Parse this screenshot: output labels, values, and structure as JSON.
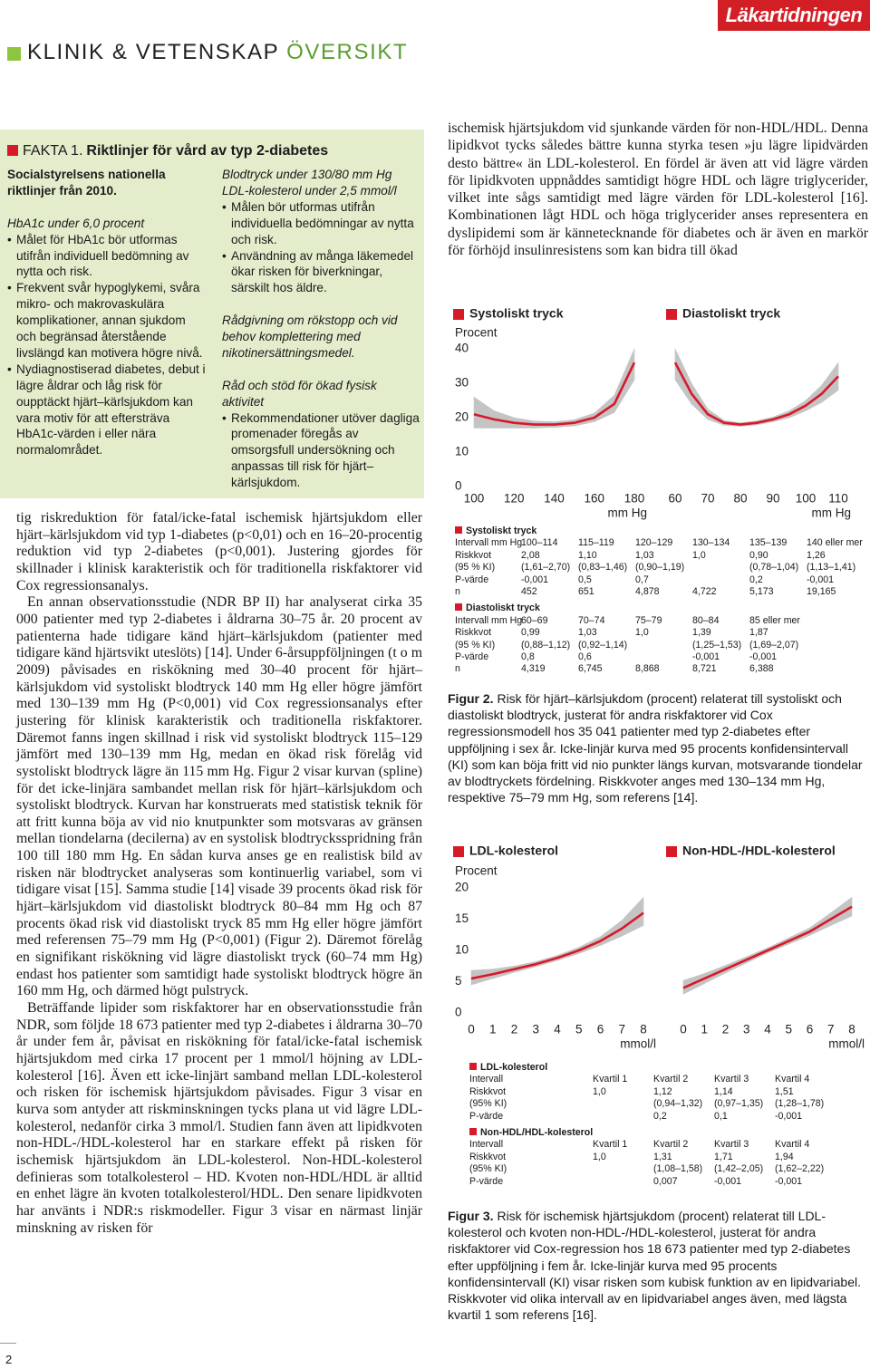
{
  "header": {
    "logo": "Läkartidningen",
    "section": "KLINIK & VETENSKAP",
    "section_highlight": "ÖVERSIKT"
  },
  "fact_box": {
    "label": "FAKTA 1.",
    "title": "Riktlinjer för vård av typ 2-diabetes",
    "left": {
      "intro": "Socialstyrelsens nationella riktlinjer från 2010.",
      "sections": [
        {
          "headings": [
            "HbA1c under 6,0 procent"
          ],
          "bullets": [
            "Målet för HbA1c bör utformas utifrån individuell bedömning av nytta och risk.",
            "Frekvent svår hypoglykemi, svåra mikro- och makrovaskulära komplikationer, annan sjukdom och begränsad återstående livslängd kan motivera högre nivå.",
            "Nydiagnostiserad diabetes, debut i lägre åldrar och låg risk för oupptäckt hjärt–kärlsjukdom kan vara motiv för att eftersträva HbA1c-värden i eller nära normalområdet."
          ]
        }
      ]
    },
    "right": {
      "sections": [
        {
          "headings": [
            "Blodtryck under 130/80 mm Hg",
            "LDL-kolesterol under 2,5 mmol/l"
          ],
          "bullets": [
            "Målen bör utformas utifrån individuella bedömningar av nytta och risk.",
            "Användning av många läkemedel ökar risken för biverkningar, särskilt hos äldre."
          ]
        },
        {
          "headings": [
            "Rådgivning om rökstopp och vid behov komplettering med nikotinersättningsmedel."
          ]
        },
        {
          "headings": [
            "Råd och stöd för ökad fysisk aktivitet"
          ],
          "bullets": [
            "Rekommendationer utöver dagliga promenader föregås av omsorgsfull undersökning och anpassas till risk för hjärt–kärlsjukdom."
          ]
        }
      ]
    }
  },
  "body": {
    "left_column": [
      "tig riskreduktion för fatal/icke-fatal ischemisk hjärtsjukdom eller hjärt–kärlsjukdom vid typ 1-diabetes (p<0,01) och en 16–20-procentig reduktion vid typ 2-diabetes (p<0,001). Justering gjordes för skillnader i klinisk karakteristik och för traditionella riskfaktorer vid Cox regressionsanalys.",
      "En annan observationsstudie (NDR BP II) har analyserat cirka 35 000 patienter med typ 2-diabetes i åldrarna 30–75 år. 20 procent av patienterna hade tidigare känd hjärt–kärlsjukdom (patienter med tidigare känd hjärtsvikt uteslöts) [14]. Under 6-årsuppföljningen (t o m 2009) påvisades en riskökning med 30–40 procent för hjärt–kärlsjukdom vid systoliskt blodtryck 140 mm Hg eller högre jämfört med 130–139 mm Hg (P<0,001) vid Cox regressionsanalys efter justering för klinisk karakteristik och traditionella riskfaktorer. Däremot fanns ingen skillnad i risk vid systoliskt blodtryck 115–129 jämfört med 130–139 mm Hg, medan en ökad risk förelåg vid systoliskt blodtryck lägre än 115 mm Hg. Figur 2 visar kurvan (spline) för det icke-linjära sambandet mellan risk för hjärt–kärlsjukdom och systoliskt blodtryck. Kurvan har konstruerats med statistisk teknik för att fritt kunna böja av vid nio knutpunkter som motsvaras av gränsen mellan tiondelarna (decilerna) av en systolisk blodtrycksspridning från 100 till 180 mm Hg. En sådan kurva anses ge en realistisk bild av risken när blodtrycket analyseras som kontinuerlig variabel, som vi tidigare visat [15]. Samma studie [14] visade 39 procents ökad risk för hjärt–kärlsjukdom vid diastoliskt blodtryck 80–84 mm Hg och 87 procents ökad risk vid diastoliskt tryck 85 mm Hg eller högre jämfört med referensen 75–79 mm Hg (P<0,001) (Figur 2). Däremot förelåg en signifikant riskökning vid lägre diastoliskt tryck (60–74 mm Hg) endast hos patienter som samtidigt hade systoliskt blodtryck högre än 160 mm Hg, och därmed högt pulstryck.",
      "Beträffande lipider som riskfaktorer har en observationsstudie från NDR, som följde 18 673 patienter med typ 2-diabetes i åldrarna 30–70 år under fem år, påvisat en riskökning för fatal/icke-fatal ischemisk hjärtsjukdom med cirka 17 procent per 1 mmol/l höjning av LDL-kolesterol [16]. Även ett icke-linjärt samband mellan LDL-kolesterol och risken för ischemisk hjärtsjukdom påvisades. Figur 3 visar en kurva som antyder att riskminskningen tycks plana ut vid lägre LDL-kolesterol, nedanför cirka 3 mmol/l. Studien fann även att lipidkvoten non-HDL-/HDL-kolesterol har en starkare effekt på risken för ischemisk hjärtsjukdom än LDL-kolesterol. Non-HDL-kolesterol definieras som totalkolesterol – HD. Kvoten non-HDL/HDL är alltid en enhet lägre än kvoten totalkolesterol/HDL. Den senare lipidkvoten har använts i NDR:s riskmodeller. Figur 3 visar en närmast linjär minskning av risken för"
    ],
    "right_column": [
      "ischemisk hjärtsjukdom vid sjunkande värden för non-HDL/HDL. Denna lipidkvot tycks således bättre kunna styrka tesen »ju lägre lipidvärden desto bättre« än LDL-kolesterol. En fördel är även att vid lägre värden för lipidkvoten uppnåddes samtidigt högre HDL och lägre triglycerider, vilket inte sågs samtidigt med lägre värden för LDL-kolesterol [16]. Kombinationen lågt HDL och höga triglycerider anses representera en dyslipidemi som är kännetecknande för diabetes och är även en markör för förhöjd insulinresistens som kan bidra till ökad"
    ]
  },
  "chart_data": [
    {
      "type": "line",
      "title": "Systoliskt tryck",
      "y_label": "Procent",
      "x_unit": "mm Hg",
      "color": "#d7192a",
      "band_color": "#c4c4c4",
      "x": [
        100,
        110,
        120,
        130,
        140,
        150,
        160,
        170,
        180
      ],
      "values": [
        21,
        19.5,
        18.5,
        18,
        18,
        18.5,
        20,
        24,
        36
      ],
      "ci_lower": [
        17,
        17,
        17,
        17,
        17.2,
        17.6,
        18.8,
        21.5,
        31
      ],
      "ci_upper": [
        26,
        22,
        20,
        19,
        18.8,
        19.4,
        21.3,
        26.5,
        40
      ],
      "xlim": [
        100,
        180
      ],
      "ylim": [
        0,
        40
      ],
      "xticks": [
        100,
        120,
        140,
        160,
        180
      ],
      "yticks": [
        0,
        10,
        20,
        30,
        40
      ]
    },
    {
      "type": "line",
      "title": "Diastoliskt tryck",
      "x_unit": "mm Hg",
      "color": "#d7192a",
      "band_color": "#c4c4c4",
      "x": [
        60,
        65,
        70,
        75,
        80,
        85,
        90,
        95,
        100,
        105,
        110
      ],
      "values": [
        36,
        27,
        21,
        18.5,
        18,
        18.5,
        19.5,
        21,
        23.5,
        27,
        32
      ],
      "ci_lower": [
        31,
        24,
        19.5,
        17.8,
        17.5,
        17.9,
        18.8,
        20,
        22,
        24.5,
        28
      ],
      "ci_upper": [
        40,
        30,
        22.5,
        19.2,
        18.5,
        19.1,
        20.2,
        22,
        25,
        29.5,
        36
      ],
      "xlim": [
        60,
        110
      ],
      "ylim": [
        0,
        40
      ],
      "xticks": [
        60,
        70,
        80,
        90,
        100,
        110
      ]
    },
    {
      "type": "line",
      "title": "LDL-kolesterol",
      "y_label": "Procent",
      "x_unit": "mmol/l",
      "color": "#d7192a",
      "band_color": "#c4c4c4",
      "x": [
        0,
        1,
        2,
        3,
        4,
        5,
        6,
        7,
        8
      ],
      "values": [
        5.5,
        6.2,
        7,
        7.8,
        8.8,
        10,
        11.5,
        13.5,
        16
      ],
      "ci_lower": [
        4.5,
        5.5,
        6.5,
        7.4,
        8.4,
        9.5,
        10.8,
        12.3,
        14
      ],
      "ci_upper": [
        6.8,
        7,
        7.5,
        8.2,
        9.2,
        10.5,
        12.2,
        14.8,
        18.5
      ],
      "xlim": [
        0,
        8
      ],
      "ylim": [
        0,
        20
      ],
      "xticks": [
        0,
        1,
        2,
        3,
        4,
        5,
        6,
        7,
        8
      ],
      "yticks": [
        0,
        5,
        10,
        15,
        20
      ]
    },
    {
      "type": "line",
      "title": "Non-HDL-/HDL-kolesterol",
      "x_unit": "mmol/l",
      "color": "#d7192a",
      "band_color": "#c4c4c4",
      "x": [
        0,
        1,
        2,
        3,
        4,
        5,
        6,
        7,
        8
      ],
      "values": [
        4,
        5.5,
        7,
        8.5,
        10,
        11.5,
        13,
        15,
        17
      ],
      "ci_lower": [
        3,
        4.7,
        6.4,
        8,
        9.6,
        11,
        12.4,
        14,
        15.5
      ],
      "ci_upper": [
        5.2,
        6.3,
        7.6,
        9,
        10.4,
        12,
        13.6,
        16,
        18.5
      ],
      "xlim": [
        0,
        8
      ],
      "ylim": [
        0,
        20
      ],
      "xticks": [
        0,
        1,
        2,
        3,
        4,
        5,
        6,
        7,
        8
      ]
    }
  ],
  "figure2": {
    "table": [
      {
        "title": "Systoliskt tryck",
        "rows": [
          {
            "label": "Intervall mm Hg",
            "cells": [
              "100–114",
              "115–119",
              "120–129",
              "130–134",
              "135–139",
              "140 eller mer"
            ]
          },
          {
            "label": "Riskkvot",
            "cells": [
              "2,08",
              "1,10",
              "1,03",
              "1,0",
              "0,90",
              "1,26"
            ]
          },
          {
            "label": "(95 % KI)",
            "cells": [
              "(1,61–2,70)",
              "(0,83–1,46)",
              "(0,90–1,19)",
              null,
              "(0,78–1,04)",
              "(1,13–1,41)"
            ]
          },
          {
            "label": "P-värde",
            "cells": [
              "-0,001",
              "0,5",
              "0,7",
              null,
              "0,2",
              "-0,001"
            ]
          },
          {
            "label": "n",
            "cells": [
              "452",
              "651",
              "4,878",
              "4,722",
              "5,173",
              "19,165"
            ]
          }
        ]
      },
      {
        "title": "Diastoliskt tryck",
        "rows": [
          {
            "label": "Intervall mm Hg",
            "cells": [
              "60–69",
              "70–74",
              "75–79",
              "80–84",
              "85 eller mer"
            ]
          },
          {
            "label": "Riskkvot",
            "cells": [
              "0,99",
              "1,03",
              "1,0",
              "1,39",
              "1,87"
            ]
          },
          {
            "label": "(95 % KI)",
            "cells": [
              "(0,88–1,12)",
              "(0,92–1,14)",
              null,
              "(1,25–1,53)",
              "(1,69–2,07)"
            ]
          },
          {
            "label": "P-värde",
            "cells": [
              "0,8",
              "0,6",
              null,
              "-0,001",
              "-0,001"
            ]
          },
          {
            "label": "n",
            "cells": [
              "4,319",
              "6,745",
              "8,868",
              "8,721",
              "6,388"
            ]
          }
        ]
      }
    ],
    "caption": {
      "label": "Figur 2.",
      "text": "Risk för hjärt–kärlsjukdom (procent) relaterat till systoliskt och diastoliskt blodtryck, justerat för andra riskfaktorer vid Cox regressionsmodell hos 35 041 patienter med typ 2-diabetes efter uppföljning i sex år. Icke-linjär kurva med 95 procents konfidensintervall (KI) som kan böja fritt vid nio punkter längs kurvan, motsvarande tiondelar av blodtryckets fördelning. Riskkvoter anges med 130–134 mm Hg, respektive 75–79 mm Hg, som referens [14]."
    }
  },
  "figure3": {
    "table": [
      {
        "title": "LDL-kolesterol",
        "rows": [
          {
            "label": "Intervall",
            "cells": [
              "Kvartil 1",
              "Kvartil 2",
              "Kvartil 3",
              "Kvartil 4"
            ]
          },
          {
            "label": "Riskkvot",
            "cells": [
              "1,0",
              "1,12",
              "1,14",
              "1,51"
            ]
          },
          {
            "label": "(95% KI)",
            "cells": [
              null,
              "(0,94–1,32)",
              "(0,97–1,35)",
              "(1,28–1,78)"
            ]
          },
          {
            "label": "P-värde",
            "cells": [
              null,
              "0,2",
              "0,1",
              "-0,001"
            ]
          }
        ]
      },
      {
        "title": "Non-HDL/HDL-kolesterol",
        "rows": [
          {
            "label": "Intervall",
            "cells": [
              "Kvartil 1",
              "Kvartil 2",
              "Kvartil 3",
              "Kvartil 4"
            ]
          },
          {
            "label": "Riskkvot",
            "cells": [
              "1,0",
              "1,31",
              "1,71",
              "1,94"
            ]
          },
          {
            "label": "(95% KI)",
            "cells": [
              null,
              "(1,08–1,58)",
              "(1,42–2,05)",
              "(1,62–2,22)"
            ]
          },
          {
            "label": "P-värde",
            "cells": [
              null,
              "0,007",
              "-0,001",
              "-0,001"
            ]
          }
        ]
      }
    ],
    "caption": {
      "label": "Figur 3.",
      "text": "Risk för ischemisk hjärtsjukdom (procent) relaterat till LDL-kolesterol och kvoten non-HDL-/HDL-kolesterol, justerat för andra riskfaktorer vid Cox-regression hos 18 673 patienter med typ 2-diabetes efter uppföljning i fem år. Icke-linjär kurva med 95 procents konfidensintervall (KI) visar risken som kubisk funktion av en lipidvariabel. Riskkvoter vid olika intervall av en lipidvariabel anges även, med lägsta kvartil 1 som referens [16]."
    }
  },
  "page_number": "2"
}
